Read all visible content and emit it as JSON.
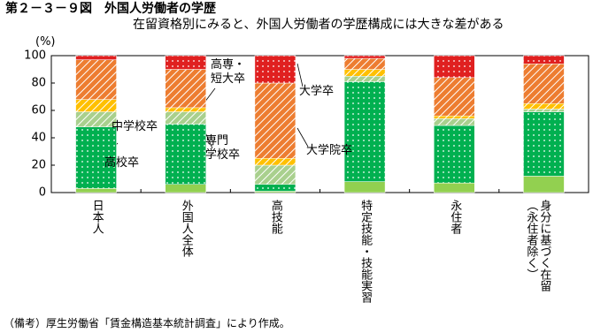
{
  "chart_data": {
    "type": "stacked_bar",
    "title": "第２－３－９図　外国人労働者の学歴",
    "subtitle": "在留資格別にみると、外国人労働者の学歴構成には大きな差がある",
    "y_label": "(%)",
    "note": "（備考）厚生労働省「賃金構造基本統計調査」により作成。",
    "categories": [
      "日本人",
      "外国人全体",
      "高技能",
      "特定技能・技能実習",
      "永住者",
      "身分に基づく在留\n（永住者除く）"
    ],
    "series": [
      {
        "name": "中学校卒",
        "color": "#92d050",
        "pattern": "solid",
        "values": [
          3,
          6,
          1,
          8,
          7,
          12
        ]
      },
      {
        "name": "高校卒",
        "color": "#00b050",
        "pattern": "dots",
        "values": [
          45,
          44,
          5,
          73,
          42,
          47
        ]
      },
      {
        "name": "専門\n学校卒",
        "color": "#a9d08e",
        "pattern": "hatch",
        "values": [
          11,
          9,
          14,
          4,
          5,
          2
        ]
      },
      {
        "name": "高専・\n短大卒",
        "color": "#ffc000",
        "pattern": "hatch",
        "values": [
          9,
          3,
          5,
          5,
          2,
          4
        ]
      },
      {
        "name": "大学卒",
        "color": "#ed7d31",
        "pattern": "hatch",
        "values": [
          29,
          28,
          55,
          8,
          28,
          29
        ]
      },
      {
        "name": "大学院卒",
        "color": "#e02020",
        "pattern": "dots",
        "values": [
          3,
          10,
          20,
          2,
          16,
          6
        ]
      }
    ],
    "ylim": [
      0,
      100
    ],
    "yticks": [
      0,
      20,
      40,
      60,
      80,
      100
    ]
  }
}
